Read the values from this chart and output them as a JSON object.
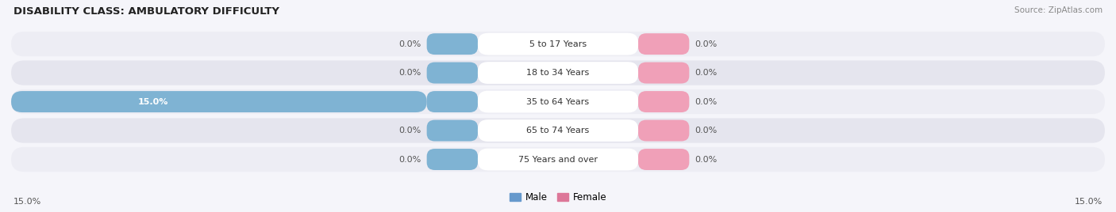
{
  "title": "DISABILITY CLASS: AMBULATORY DIFFICULTY",
  "source": "Source: ZipAtlas.com",
  "categories": [
    "5 to 17 Years",
    "18 to 34 Years",
    "35 to 64 Years",
    "65 to 74 Years",
    "75 Years and over"
  ],
  "male_values": [
    0.0,
    0.0,
    15.0,
    0.0,
    0.0
  ],
  "female_values": [
    0.0,
    0.0,
    0.0,
    0.0,
    0.0
  ],
  "x_max": 15.0,
  "male_color": "#7fb3d3",
  "female_color": "#f0a0b8",
  "row_bg_even": "#ededf4",
  "row_bg_odd": "#e5e5ee",
  "label_pill_color": "#f5f5fa",
  "label_text_color": "#333333",
  "value_text_color": "#555555",
  "title_color": "#222222",
  "bg_color": "#f5f5fa",
  "legend_male_color": "#6699cc",
  "legend_female_color": "#dd7799",
  "x_tick_color": "#555555"
}
